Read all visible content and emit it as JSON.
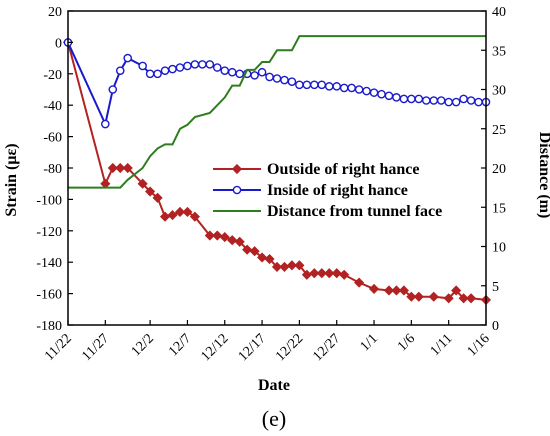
{
  "caption": "(e)",
  "chart_data": {
    "type": "line",
    "xlabel": "Date",
    "ylabel_left": "Strain (με)",
    "ylabel_right": "Distance (m)",
    "x_ticks": [
      "11/22",
      "11/27",
      "12/2",
      "12/7",
      "12/12",
      "12/17",
      "12/22",
      "12/27",
      "1/1",
      "1/6",
      "1/11",
      "1/16"
    ],
    "xlim": [
      "11/22",
      "1/16"
    ],
    "ylim_left": [
      -180,
      20
    ],
    "ylim_right": [
      0,
      40
    ],
    "y_ticks_left": [
      "20",
      "0",
      "-20",
      "-40",
      "-60",
      "-80",
      "-100",
      "-120",
      "-140",
      "-160",
      "-180"
    ],
    "y_ticks_right": [
      "40",
      "35",
      "30",
      "25",
      "20",
      "15",
      "10",
      "5",
      "0"
    ],
    "legend_position": "center-right",
    "series": [
      {
        "name": "Outside of right hance",
        "axis": "left",
        "color": "#b22222",
        "marker": "diamond",
        "points": [
          [
            "11/22",
            0
          ],
          [
            "11/27",
            -90
          ],
          [
            "11/28",
            -80
          ],
          [
            "11/29",
            -80
          ],
          [
            "11/30",
            -80
          ],
          [
            "12/1",
            -90
          ],
          [
            "12/2",
            -95
          ],
          [
            "12/3",
            -99
          ],
          [
            "12/4",
            -111
          ],
          [
            "12/5",
            -110
          ],
          [
            "12/6",
            -108
          ],
          [
            "12/7",
            -108
          ],
          [
            "12/8",
            -111
          ],
          [
            "12/10",
            -123
          ],
          [
            "12/11",
            -123
          ],
          [
            "12/12",
            -124
          ],
          [
            "12/13",
            -126
          ],
          [
            "12/14",
            -127
          ],
          [
            "12/15",
            -132
          ],
          [
            "12/16",
            -133
          ],
          [
            "12/17",
            -137
          ],
          [
            "12/18",
            -138
          ],
          [
            "12/19",
            -143
          ],
          [
            "12/20",
            -143
          ],
          [
            "12/21",
            -142
          ],
          [
            "12/22",
            -142
          ],
          [
            "12/23",
            -148
          ],
          [
            "12/24",
            -147
          ],
          [
            "12/25",
            -147
          ],
          [
            "12/26",
            -147
          ],
          [
            "12/27",
            -147
          ],
          [
            "12/28",
            -148
          ],
          [
            "12/30",
            -153
          ],
          [
            "1/1",
            -157
          ],
          [
            "1/3",
            -158
          ],
          [
            "1/4",
            -158
          ],
          [
            "1/5",
            -158
          ],
          [
            "1/6",
            -162
          ],
          [
            "1/7",
            -162
          ],
          [
            "1/9",
            -162
          ],
          [
            "1/11",
            -163
          ],
          [
            "1/12",
            -158
          ],
          [
            "1/13",
            -163
          ],
          [
            "1/14",
            -163
          ],
          [
            "1/16",
            -164
          ]
        ]
      },
      {
        "name": "Inside of right hance",
        "axis": "left",
        "color": "#1a1acc",
        "marker": "circle",
        "points": [
          [
            "11/22",
            0
          ],
          [
            "11/27",
            -52
          ],
          [
            "11/28",
            -30
          ],
          [
            "11/29",
            -18
          ],
          [
            "11/30",
            -10
          ],
          [
            "12/1",
            -15
          ],
          [
            "12/2",
            -20
          ],
          [
            "12/3",
            -20
          ],
          [
            "12/4",
            -18
          ],
          [
            "12/5",
            -17
          ],
          [
            "12/6",
            -16
          ],
          [
            "12/7",
            -15
          ],
          [
            "12/8",
            -14
          ],
          [
            "12/9",
            -14
          ],
          [
            "12/10",
            -14
          ],
          [
            "12/11",
            -16
          ],
          [
            "12/12",
            -18
          ],
          [
            "12/13",
            -19
          ],
          [
            "12/14",
            -20
          ],
          [
            "12/15",
            -20
          ],
          [
            "12/16",
            -21
          ],
          [
            "12/17",
            -19
          ],
          [
            "12/18",
            -22
          ],
          [
            "12/19",
            -23
          ],
          [
            "12/20",
            -24
          ],
          [
            "12/21",
            -25
          ],
          [
            "12/22",
            -27
          ],
          [
            "12/23",
            -27
          ],
          [
            "12/24",
            -27
          ],
          [
            "12/25",
            -27
          ],
          [
            "12/26",
            -28
          ],
          [
            "12/27",
            -28
          ],
          [
            "12/28",
            -29
          ],
          [
            "12/29",
            -29
          ],
          [
            "12/30",
            -30
          ],
          [
            "12/31",
            -31
          ],
          [
            "1/1",
            -32
          ],
          [
            "1/2",
            -33
          ],
          [
            "1/3",
            -34
          ],
          [
            "1/4",
            -35
          ],
          [
            "1/5",
            -36
          ],
          [
            "1/6",
            -36
          ],
          [
            "1/7",
            -36
          ],
          [
            "1/8",
            -37
          ],
          [
            "1/9",
            -37
          ],
          [
            "1/10",
            -37
          ],
          [
            "1/11",
            -38
          ],
          [
            "1/12",
            -38
          ],
          [
            "1/13",
            -36
          ],
          [
            "1/14",
            -37
          ],
          [
            "1/15",
            -38
          ],
          [
            "1/16",
            -38
          ]
        ]
      },
      {
        "name": "Distance from tunnel face",
        "axis": "right",
        "color": "#2e7d1e",
        "marker": "none",
        "points": [
          [
            "11/22",
            17.5
          ],
          [
            "11/29",
            17.5
          ],
          [
            "11/30",
            18.5
          ],
          [
            "12/1",
            20
          ],
          [
            "12/2",
            21.5
          ],
          [
            "12/3",
            22.5
          ],
          [
            "12/4",
            23
          ],
          [
            "12/5",
            23
          ],
          [
            "12/6",
            25
          ],
          [
            "12/7",
            25.5
          ],
          [
            "12/8",
            26.5
          ],
          [
            "12/10",
            27
          ],
          [
            "12/11",
            28
          ],
          [
            "12/12",
            29
          ],
          [
            "12/13",
            30.5
          ],
          [
            "12/14",
            30.5
          ],
          [
            "12/15",
            32.5
          ],
          [
            "12/16",
            32.5
          ],
          [
            "12/17",
            33.5
          ],
          [
            "12/18",
            33.5
          ],
          [
            "12/19",
            35
          ],
          [
            "12/20",
            35
          ],
          [
            "12/21",
            35
          ],
          [
            "12/22",
            36.8
          ],
          [
            "1/16",
            36.8
          ]
        ]
      }
    ]
  }
}
